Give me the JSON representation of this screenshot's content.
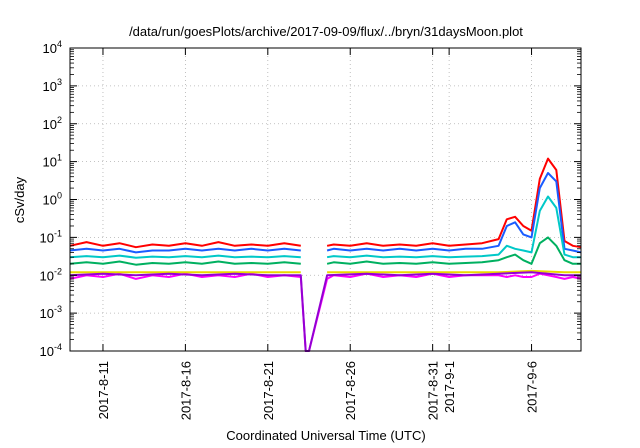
{
  "chart_data": {
    "type": "line",
    "title": "/data/run/goesPlots/archive/2017-09-09/flux/../bryn/31daysMoon.plot",
    "xlabel": "Coordinated Universal Time (UTC)",
    "ylabel": "cSv/day",
    "yscale": "log",
    "ylim": [
      0.0001,
      10000
    ],
    "xlim_days": [
      0,
      31
    ],
    "x_origin_date": "2017-08-09",
    "grid": true,
    "legend": "none",
    "y_ticks": [
      {
        "value": 0.0001,
        "base": "10",
        "exp": "-4"
      },
      {
        "value": 0.001,
        "base": "10",
        "exp": "-3"
      },
      {
        "value": 0.01,
        "base": "10",
        "exp": "-2"
      },
      {
        "value": 0.1,
        "base": "10",
        "exp": "-1"
      },
      {
        "value": 1,
        "base": "10",
        "exp": "0"
      },
      {
        "value": 10,
        "base": "10",
        "exp": "1"
      },
      {
        "value": 100,
        "base": "10",
        "exp": "2"
      },
      {
        "value": 1000,
        "base": "10",
        "exp": "3"
      },
      {
        "value": 10000,
        "base": "10",
        "exp": "4"
      }
    ],
    "x_ticks": [
      {
        "day": 2,
        "label": "2017-8-11"
      },
      {
        "day": 7,
        "label": "2017-8-16"
      },
      {
        "day": 12,
        "label": "2017-8-21"
      },
      {
        "day": 17,
        "label": "2017-8-26"
      },
      {
        "day": 22,
        "label": "2017-8-31"
      },
      {
        "day": 23,
        "label": "2017-9-1"
      },
      {
        "day": 28,
        "label": "2017-9-6"
      }
    ],
    "gap_days": [
      14.2,
      15.6
    ],
    "series": [
      {
        "name": "red",
        "color": "#ff0000",
        "days": [
          0,
          1,
          2,
          3,
          4,
          5,
          6,
          7,
          8,
          9,
          10,
          11,
          12,
          13,
          14,
          15.6,
          16,
          17,
          18,
          19,
          20,
          21,
          22,
          23,
          24,
          25,
          26,
          26.5,
          27,
          27.5,
          28,
          28.5,
          29,
          29.5,
          30,
          30.5,
          31
        ],
        "values": [
          0.06,
          0.075,
          0.06,
          0.07,
          0.055,
          0.065,
          0.06,
          0.07,
          0.06,
          0.075,
          0.06,
          0.065,
          0.06,
          0.07,
          0.06,
          0.06,
          0.065,
          0.06,
          0.07,
          0.06,
          0.065,
          0.06,
          0.07,
          0.06,
          0.065,
          0.07,
          0.09,
          0.3,
          0.35,
          0.2,
          0.15,
          3.5,
          12,
          6,
          0.08,
          0.06,
          0.055
        ]
      },
      {
        "name": "blue",
        "color": "#1a5cff",
        "days": [
          0,
          1,
          2,
          3,
          4,
          5,
          6,
          7,
          8,
          9,
          10,
          11,
          12,
          13,
          14,
          15.6,
          16,
          17,
          18,
          19,
          20,
          21,
          22,
          23,
          24,
          25,
          26,
          26.5,
          27,
          27.5,
          28,
          28.5,
          29,
          29.5,
          30,
          30.5,
          31
        ],
        "values": [
          0.045,
          0.05,
          0.045,
          0.05,
          0.04,
          0.045,
          0.045,
          0.05,
          0.045,
          0.05,
          0.045,
          0.05,
          0.045,
          0.05,
          0.045,
          0.045,
          0.05,
          0.045,
          0.05,
          0.045,
          0.05,
          0.045,
          0.05,
          0.045,
          0.05,
          0.05,
          0.06,
          0.2,
          0.25,
          0.12,
          0.1,
          2.0,
          5,
          3,
          0.05,
          0.045,
          0.04
        ]
      },
      {
        "name": "cyan",
        "color": "#00c8c8",
        "days": [
          0,
          1,
          2,
          3,
          4,
          5,
          6,
          7,
          8,
          9,
          10,
          11,
          12,
          13,
          14,
          15.6,
          16,
          17,
          18,
          19,
          20,
          21,
          22,
          23,
          24,
          25,
          26,
          26.5,
          27,
          27.5,
          28,
          28.5,
          29,
          29.5,
          30,
          30.5,
          31
        ],
        "values": [
          0.03,
          0.032,
          0.03,
          0.033,
          0.029,
          0.031,
          0.03,
          0.032,
          0.03,
          0.033,
          0.03,
          0.031,
          0.03,
          0.032,
          0.03,
          0.03,
          0.032,
          0.03,
          0.033,
          0.03,
          0.031,
          0.03,
          0.032,
          0.03,
          0.031,
          0.032,
          0.035,
          0.06,
          0.05,
          0.045,
          0.04,
          0.5,
          1.2,
          0.6,
          0.035,
          0.03,
          0.03
        ]
      },
      {
        "name": "green",
        "color": "#00b060",
        "days": [
          0,
          1,
          2,
          3,
          4,
          5,
          6,
          7,
          8,
          9,
          10,
          11,
          12,
          13,
          14,
          15.6,
          16,
          17,
          18,
          19,
          20,
          21,
          22,
          23,
          24,
          25,
          26,
          26.5,
          27,
          27.5,
          28,
          28.5,
          29,
          29.5,
          30,
          30.5,
          31
        ],
        "values": [
          0.02,
          0.022,
          0.02,
          0.023,
          0.019,
          0.021,
          0.02,
          0.022,
          0.02,
          0.023,
          0.02,
          0.021,
          0.02,
          0.022,
          0.02,
          0.02,
          0.022,
          0.02,
          0.023,
          0.02,
          0.021,
          0.02,
          0.022,
          0.02,
          0.021,
          0.022,
          0.025,
          0.03,
          0.035,
          0.025,
          0.02,
          0.07,
          0.1,
          0.06,
          0.025,
          0.02,
          0.02
        ]
      },
      {
        "name": "magenta",
        "color": "#ff00ff",
        "days": [
          0,
          1,
          2,
          3,
          4,
          5,
          6,
          7,
          8,
          9,
          10,
          11,
          12,
          13,
          14,
          14.3,
          14.5,
          15.6,
          16,
          17,
          18,
          19,
          20,
          21,
          22,
          23,
          24,
          25,
          26,
          26.5,
          27,
          27.5,
          28,
          28.5,
          29,
          29.5,
          30,
          30.5,
          31
        ],
        "values": [
          0.008,
          0.01,
          0.009,
          0.011,
          0.008,
          0.01,
          0.009,
          0.011,
          0.009,
          0.01,
          0.009,
          0.011,
          0.009,
          0.01,
          0.009,
          0.0001,
          0.0001,
          0.008,
          0.01,
          0.009,
          0.011,
          0.009,
          0.01,
          0.009,
          0.011,
          0.009,
          0.01,
          0.01,
          0.01,
          0.009,
          0.01,
          0.009,
          0.009,
          0.011,
          0.01,
          0.009,
          0.008,
          0.009,
          0.008
        ]
      },
      {
        "name": "yellow",
        "color": "#e8d800",
        "days": [
          0,
          2,
          4,
          6,
          8,
          10,
          12,
          14,
          15.6,
          18,
          20,
          22,
          24,
          26,
          28,
          30,
          31
        ],
        "values": [
          0.012,
          0.012,
          0.012,
          0.012,
          0.012,
          0.012,
          0.012,
          0.012,
          0.012,
          0.012,
          0.012,
          0.012,
          0.012,
          0.012,
          0.013,
          0.012,
          0.012
        ]
      },
      {
        "name": "purple",
        "color": "#9400d3",
        "days": [
          0,
          2,
          4,
          6,
          8,
          10,
          12,
          14,
          14.3,
          14.5,
          15.6,
          18,
          20,
          22,
          24,
          26,
          28,
          30,
          31
        ],
        "values": [
          0.01,
          0.011,
          0.01,
          0.011,
          0.01,
          0.011,
          0.01,
          0.01,
          0.0001,
          0.0001,
          0.01,
          0.011,
          0.01,
          0.011,
          0.01,
          0.011,
          0.012,
          0.01,
          0.01
        ]
      }
    ]
  }
}
